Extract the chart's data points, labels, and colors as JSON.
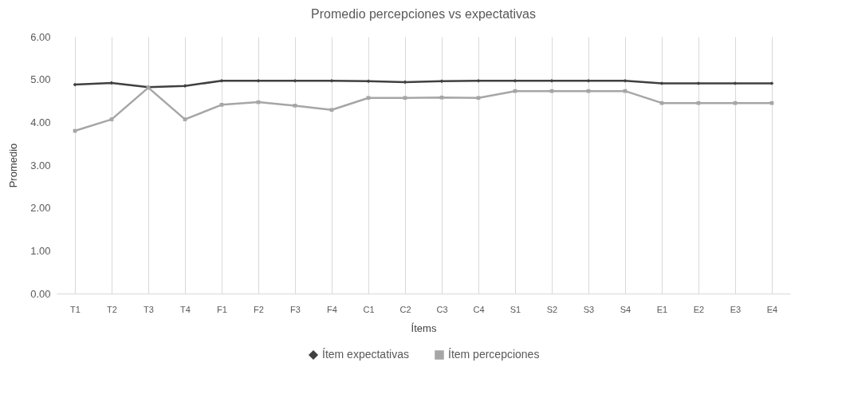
{
  "chart_data": {
    "type": "line",
    "title": "Promedio percepciones vs expectativas",
    "xlabel": "Ítems",
    "ylabel": "Promedio",
    "categories": [
      "T1",
      "T2",
      "T3",
      "T4",
      "F1",
      "F2",
      "F3",
      "F4",
      "C1",
      "C2",
      "C3",
      "C4",
      "S1",
      "S2",
      "S3",
      "S4",
      "E1",
      "E2",
      "E3",
      "E4"
    ],
    "series": [
      {
        "name": "Ítem expectativas",
        "color": "#404040",
        "marker": "diamond",
        "values": [
          4.88,
          4.92,
          4.82,
          4.85,
          4.97,
          4.97,
          4.97,
          4.97,
          4.96,
          4.94,
          4.96,
          4.97,
          4.97,
          4.97,
          4.97,
          4.97,
          4.91,
          4.91,
          4.91,
          4.91
        ]
      },
      {
        "name": "Ítem percepciones",
        "color": "#a6a6a6",
        "marker": "square",
        "values": [
          3.8,
          4.07,
          4.81,
          4.07,
          4.41,
          4.47,
          4.39,
          4.29,
          4.57,
          4.57,
          4.58,
          4.57,
          4.73,
          4.73,
          4.73,
          4.73,
          4.45,
          4.45,
          4.45,
          4.45
        ]
      }
    ],
    "ylim": [
      0,
      6
    ],
    "yticks": [
      {
        "value": 0,
        "label": "0.00"
      },
      {
        "value": 1,
        "label": "1.00"
      },
      {
        "value": 2,
        "label": "2.00"
      },
      {
        "value": 3,
        "label": "3.00"
      },
      {
        "value": 4,
        "label": "4.00"
      },
      {
        "value": 5,
        "label": "5.00"
      },
      {
        "value": 6,
        "label": "6.00"
      }
    ],
    "grid": "x",
    "legend": "bottom"
  }
}
